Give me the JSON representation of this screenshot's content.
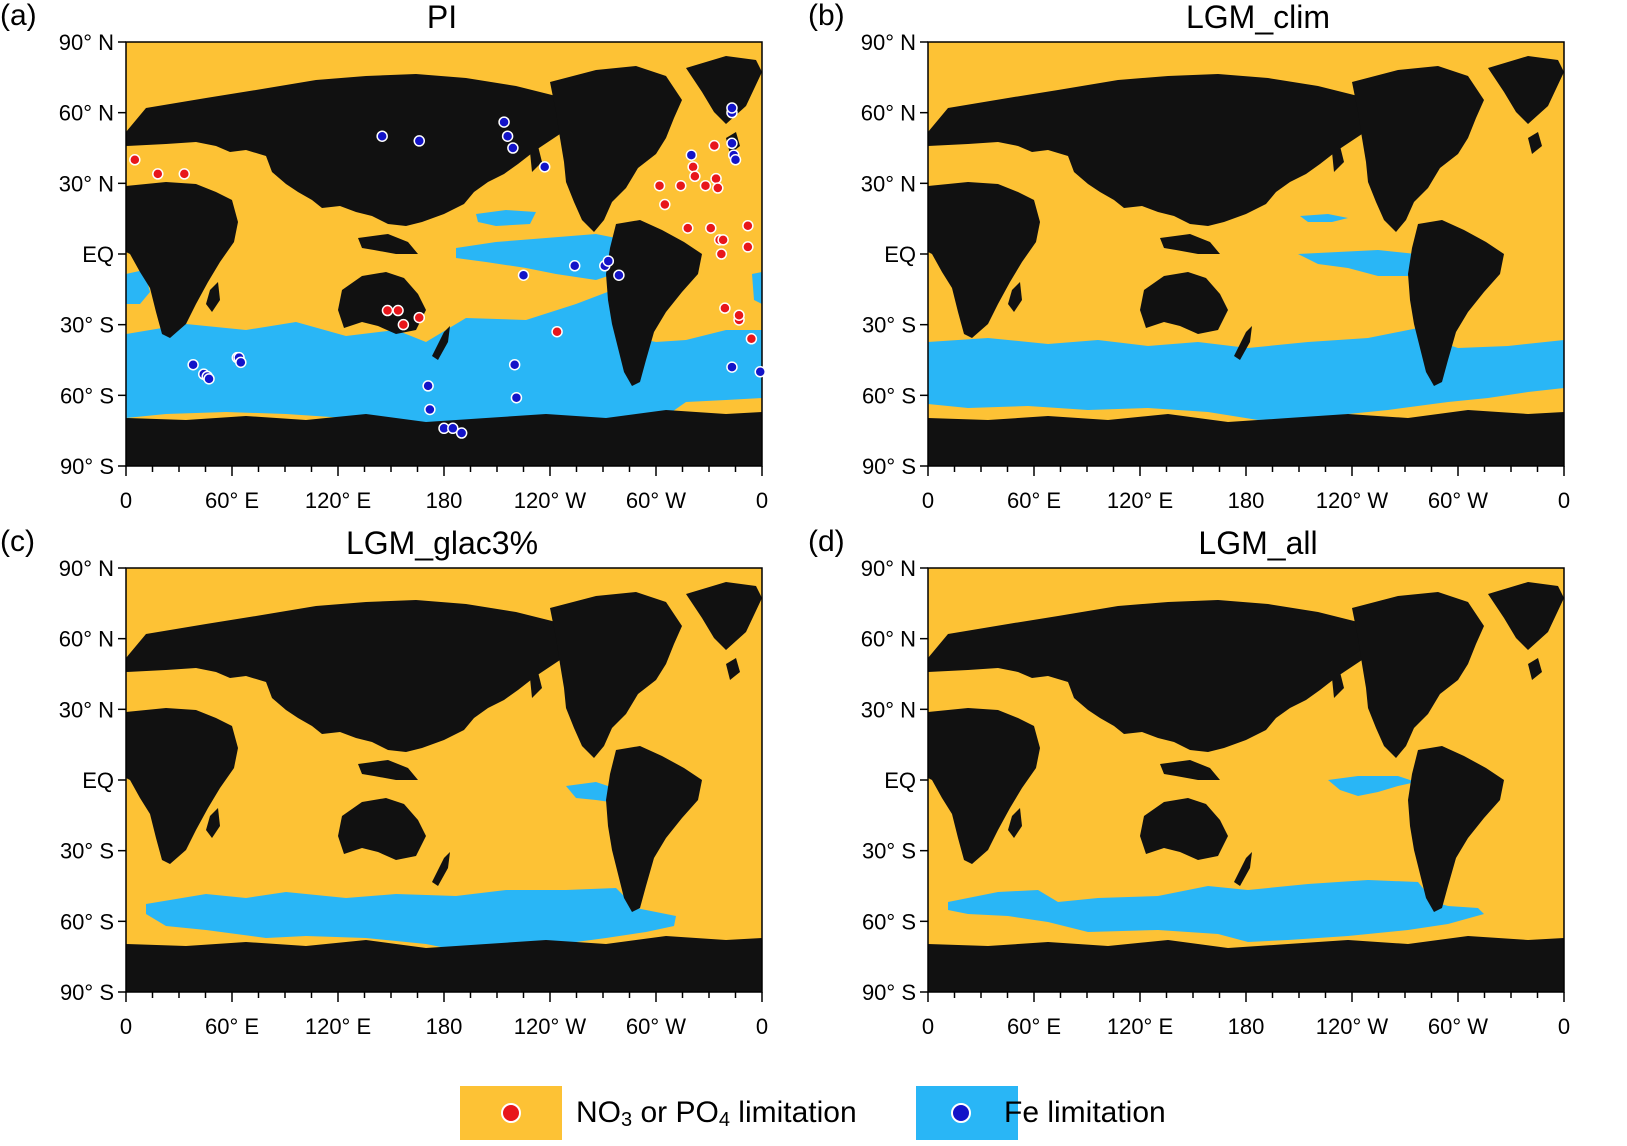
{
  "colors": {
    "ocean_nutrient": "#FDC235",
    "ocean_fe": "#29B6F6",
    "land": "#111111",
    "marker_nutrient": "#E8161B",
    "marker_fe": "#1313C8"
  },
  "axes": {
    "lat_ticks": [
      "90° N",
      "60° N",
      "30° N",
      "EQ",
      "30° S",
      "60° S",
      "90° S"
    ],
    "lon_ticks": [
      "0",
      "60° E",
      "120° E",
      "180",
      "120° W",
      "60° W",
      "0"
    ]
  },
  "panels": [
    {
      "letter": "(a)",
      "title": "PI",
      "shows_observations": true
    },
    {
      "letter": "(b)",
      "title": "LGM_clim",
      "shows_observations": false
    },
    {
      "letter": "(c)",
      "title": "LGM_glac3%",
      "shows_observations": false
    },
    {
      "letter": "(d)",
      "title": "LGM_all",
      "shows_observations": false
    }
  ],
  "legend": [
    {
      "main": "NO",
      "sub1": "3",
      "mid": " or PO",
      "sub2": "4",
      "tail": " limitation",
      "category": "nutrient"
    },
    {
      "main": "Fe limitation",
      "sub1": "",
      "mid": "",
      "sub2": "",
      "tail": "",
      "category": "fe"
    }
  ],
  "observations": {
    "nutrient": [
      [
        5,
        40
      ],
      [
        18,
        34
      ],
      [
        33,
        34
      ],
      [
        148,
        -24
      ],
      [
        154,
        -24
      ],
      [
        157,
        -30
      ],
      [
        166,
        -27
      ],
      [
        244,
        -33
      ],
      [
        302,
        29
      ],
      [
        305,
        21
      ],
      [
        314,
        29
      ],
      [
        318,
        11
      ],
      [
        321,
        37
      ],
      [
        322,
        33
      ],
      [
        328,
        29
      ],
      [
        331,
        11
      ],
      [
        333,
        46
      ],
      [
        334,
        32
      ],
      [
        335,
        28
      ],
      [
        336,
        6
      ],
      [
        337,
        0
      ],
      [
        338,
        6
      ],
      [
        339,
        -23
      ],
      [
        347,
        -28
      ],
      [
        352,
        12
      ],
      [
        352,
        3
      ],
      [
        347,
        -26
      ],
      [
        354,
        -36
      ]
    ],
    "fe": [
      [
        38,
        -47
      ],
      [
        44,
        -51
      ],
      [
        46,
        -52
      ],
      [
        47,
        -53
      ],
      [
        63,
        -44
      ],
      [
        64,
        -44
      ],
      [
        65,
        -46
      ],
      [
        145,
        50
      ],
      [
        166,
        48
      ],
      [
        171,
        -56
      ],
      [
        172,
        -66
      ],
      [
        180,
        -74
      ],
      [
        185,
        -74
      ],
      [
        190,
        -76
      ],
      [
        214,
        56
      ],
      [
        216,
        50
      ],
      [
        219,
        45
      ],
      [
        220,
        -47
      ],
      [
        221,
        -61
      ],
      [
        225,
        -9
      ],
      [
        237,
        37
      ],
      [
        254,
        -5
      ],
      [
        271,
        -5
      ],
      [
        273,
        -3
      ],
      [
        279,
        -9
      ],
      [
        320,
        42
      ],
      [
        343,
        60
      ],
      [
        343,
        62
      ],
      [
        343,
        47
      ],
      [
        344,
        42
      ],
      [
        345,
        40
      ],
      [
        343,
        -48
      ],
      [
        359,
        -50
      ]
    ]
  }
}
